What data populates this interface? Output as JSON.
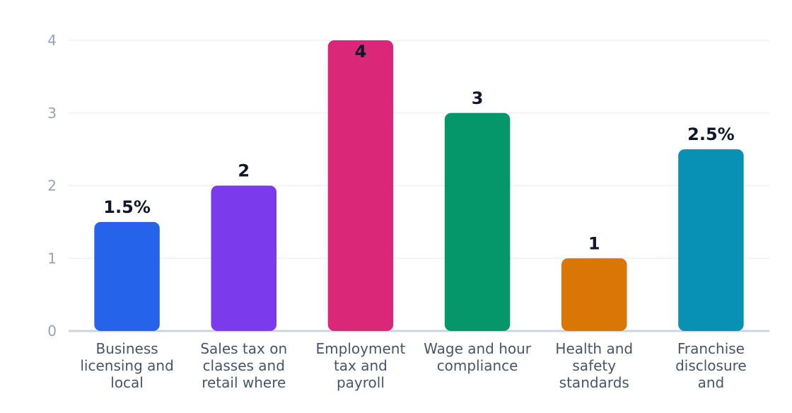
{
  "chart_data": {
    "type": "bar",
    "title": "",
    "xlabel": "",
    "ylabel": "",
    "ylim": [
      0,
      4
    ],
    "y_ticks": [
      "0",
      "1",
      "2",
      "3",
      "4"
    ],
    "grid": true,
    "legend": "none",
    "categories": [
      [
        "Business",
        "licensing and",
        "local"
      ],
      [
        "Sales tax on",
        "classes and",
        "retail where"
      ],
      [
        "Employment",
        "tax and",
        "payroll"
      ],
      [
        "Wage and hour",
        "compliance"
      ],
      [
        "Health and",
        "safety",
        "standards"
      ],
      [
        "Franchise",
        "disclosure",
        "and"
      ]
    ],
    "values": [
      1.5,
      2,
      4,
      3,
      1,
      2.5
    ],
    "data_labels": [
      "1.5%",
      "2",
      "4",
      "3",
      "1",
      "2.5%"
    ],
    "colors": [
      "#2563eb",
      "#7c3aed",
      "#db2777",
      "#059669",
      "#d97706",
      "#0891b2"
    ]
  }
}
